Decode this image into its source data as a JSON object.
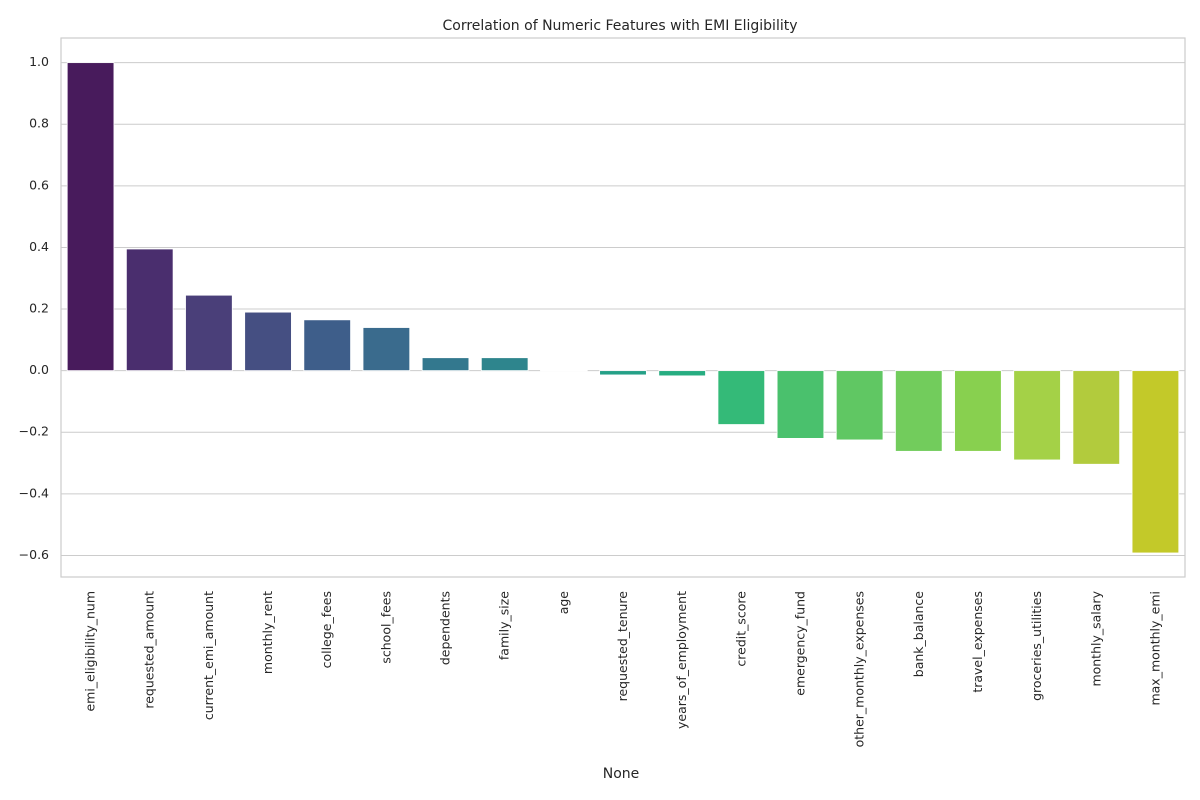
{
  "chart_data": {
    "type": "bar",
    "title": "Correlation of Numeric Features with EMI Eligibility",
    "xlabel": "None",
    "ylabel": "",
    "ylim": [
      -0.67,
      1.08
    ],
    "yticks": [
      -0.6,
      -0.4,
      -0.2,
      0.0,
      0.2,
      0.4,
      0.6,
      0.8,
      1.0
    ],
    "ytick_labels": [
      "−0.6",
      "−0.4",
      "−0.2",
      "0.0",
      "0.2",
      "0.4",
      "0.6",
      "0.8",
      "1.0"
    ],
    "grid": true,
    "palette": "viridis",
    "categories": [
      "emi_eligibility_num",
      "requested_amount",
      "current_emi_amount",
      "monthly_rent",
      "college_fees",
      "school_fees",
      "dependents",
      "family_size",
      "age",
      "requested_tenure",
      "years_of_employment",
      "credit_score",
      "emergency_fund",
      "other_monthly_expenses",
      "bank_balance",
      "travel_expenses",
      "groceries_utilities",
      "monthly_salary",
      "max_monthly_emi"
    ],
    "values": [
      1.0,
      0.395,
      0.245,
      0.19,
      0.165,
      0.14,
      0.042,
      0.042,
      0.001,
      -0.014,
      -0.017,
      -0.175,
      -0.22,
      -0.225,
      -0.262,
      -0.262,
      -0.29,
      -0.304,
      -0.592
    ],
    "colors": [
      "#481b5c",
      "#4a2e6e",
      "#4a3f79",
      "#454f82",
      "#3e5e8a",
      "#3a6b8d",
      "#33788e",
      "#2e858d",
      "#28928b",
      "#25a087",
      "#27ad81",
      "#34ba78",
      "#4ac16d",
      "#60c763",
      "#72cc5c",
      "#88d04f",
      "#a4d147",
      "#b2cb3d",
      "#c3c929"
    ]
  }
}
